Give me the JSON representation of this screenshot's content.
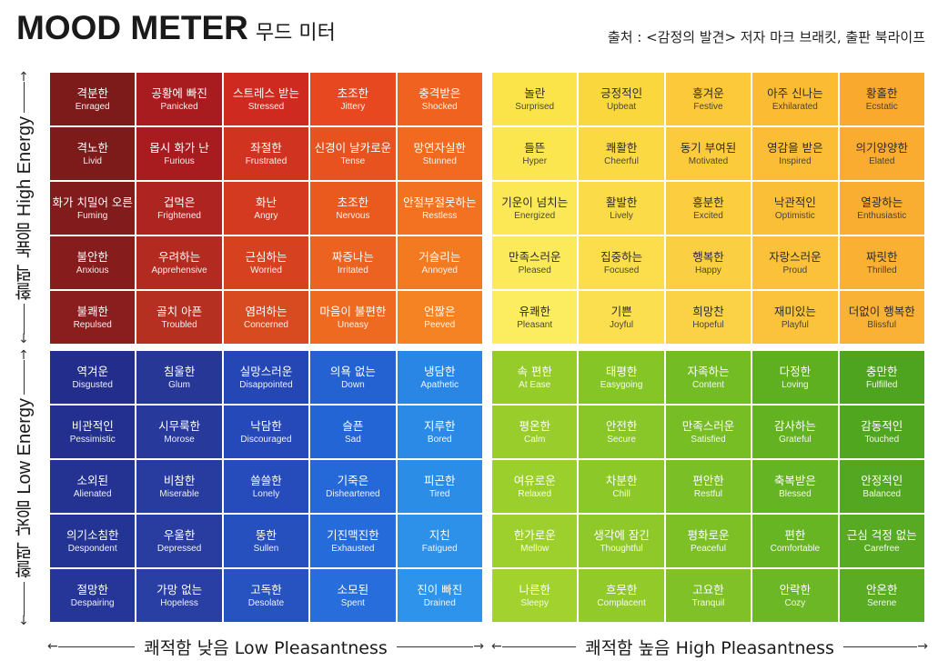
{
  "header": {
    "title_en": "MOOD METER",
    "title_ko": "무드 미터",
    "source": "출처 : <감정의 발견> 저자 마크 브래킷, 출판 북라이프"
  },
  "axes": {
    "high_energy": {
      "ko": "활력 높음",
      "en": "High Energy"
    },
    "low_energy": {
      "ko": "활력 낮음",
      "en": "Low Energy"
    },
    "low_pleasantness": "쾌적함 낮음 Low Pleasantness",
    "high_pleasantness": "쾌적함 높음 High Pleasantness"
  },
  "quadrants": {
    "red": [
      {
        "ko": "격분한",
        "en": "Enraged",
        "color": "#7d1a1a"
      },
      {
        "ko": "공황에 빠진",
        "en": "Panicked",
        "color": "#a81c1f"
      },
      {
        "ko": "스트레스 받는",
        "en": "Stressed",
        "color": "#cf2a1f"
      },
      {
        "ko": "초조한",
        "en": "Jittery",
        "color": "#e8481f"
      },
      {
        "ko": "충격받은",
        "en": "Shocked",
        "color": "#f0621f"
      },
      {
        "ko": "격노한",
        "en": "Livid",
        "color": "#7d1a1a"
      },
      {
        "ko": "몹시 화가 난",
        "en": "Furious",
        "color": "#a81c1f"
      },
      {
        "ko": "좌절한",
        "en": "Frustrated",
        "color": "#d0331f"
      },
      {
        "ko": "신경이 날카로운",
        "en": "Tense",
        "color": "#e8521f"
      },
      {
        "ko": "망연자실한",
        "en": "Stunned",
        "color": "#f26a20"
      },
      {
        "ko": "화가 치밀어 오른",
        "en": "Fuming",
        "color": "#821b1b"
      },
      {
        "ko": "겁먹은",
        "en": "Frightened",
        "color": "#ae2420"
      },
      {
        "ko": "화난",
        "en": "Angry",
        "color": "#d33a1f"
      },
      {
        "ko": "초조한",
        "en": "Nervous",
        "color": "#ea5a1f"
      },
      {
        "ko": "안절부절못하는",
        "en": "Restless",
        "color": "#f37221"
      },
      {
        "ko": "불안한",
        "en": "Anxious",
        "color": "#861c1c"
      },
      {
        "ko": "우려하는",
        "en": "Apprehensive",
        "color": "#b22a20"
      },
      {
        "ko": "근심하는",
        "en": "Worried",
        "color": "#d64120"
      },
      {
        "ko": "짜증나는",
        "en": "Irritated",
        "color": "#ec6220"
      },
      {
        "ko": "거슬리는",
        "en": "Annoyed",
        "color": "#f47a22"
      },
      {
        "ko": "불쾌한",
        "en": "Repulsed",
        "color": "#8a1d1d"
      },
      {
        "ko": "골치 아픈",
        "en": "Troubled",
        "color": "#b53020"
      },
      {
        "ko": "염려하는",
        "en": "Concerned",
        "color": "#d84a20"
      },
      {
        "ko": "마음이 불편한",
        "en": "Uneasy",
        "color": "#ee6a21"
      },
      {
        "ko": "언짢은",
        "en": "Peeved",
        "color": "#f58223"
      }
    ],
    "yellow": [
      {
        "ko": "놀란",
        "en": "Surprised",
        "color": "#fbe44a"
      },
      {
        "ko": "긍정적인",
        "en": "Upbeat",
        "color": "#fbd73e"
      },
      {
        "ko": "흥겨운",
        "en": "Festive",
        "color": "#fcc93a"
      },
      {
        "ko": "아주 신나는",
        "en": "Exhilarated",
        "color": "#fbbb33"
      },
      {
        "ko": "황홀한",
        "en": "Ecstatic",
        "color": "#f9a92e"
      },
      {
        "ko": "들뜬",
        "en": "Hyper",
        "color": "#fbe64f"
      },
      {
        "ko": "쾌활한",
        "en": "Cheerful",
        "color": "#fbd943"
      },
      {
        "ko": "동기 부여된",
        "en": "Motivated",
        "color": "#fbcb3c"
      },
      {
        "ko": "영감을 받은",
        "en": "Inspired",
        "color": "#fbbd35"
      },
      {
        "ko": "의기양양한",
        "en": "Elated",
        "color": "#f9ac2f"
      },
      {
        "ko": "기운이 넘치는",
        "en": "Energized",
        "color": "#fce855"
      },
      {
        "ko": "활발한",
        "en": "Lively",
        "color": "#fbdb47"
      },
      {
        "ko": "흥분한",
        "en": "Excited",
        "color": "#fbcd3f"
      },
      {
        "ko": "낙관적인",
        "en": "Optimistic",
        "color": "#fbbf37"
      },
      {
        "ko": "열광하는",
        "en": "Enthusiastic",
        "color": "#f9ae31"
      },
      {
        "ko": "만족스러운",
        "en": "Pleased",
        "color": "#fcea5b"
      },
      {
        "ko": "집중하는",
        "en": "Focused",
        "color": "#fcdd4b"
      },
      {
        "ko": "행복한",
        "en": "Happy",
        "color": "#fbcf42"
      },
      {
        "ko": "자랑스러운",
        "en": "Proud",
        "color": "#fbc13a"
      },
      {
        "ko": "짜릿한",
        "en": "Thrilled",
        "color": "#f9b033"
      },
      {
        "ko": "유쾌한",
        "en": "Pleasant",
        "color": "#fcec60"
      },
      {
        "ko": "기쁜",
        "en": "Joyful",
        "color": "#fcdf4f"
      },
      {
        "ko": "희망찬",
        "en": "Hopeful",
        "color": "#fbd145"
      },
      {
        "ko": "재미있는",
        "en": "Playful",
        "color": "#fbc33c"
      },
      {
        "ko": "더없이 행복한",
        "en": "Blissful",
        "color": "#f9b235"
      }
    ],
    "blue": [
      {
        "ko": "역겨운",
        "en": "Disgusted",
        "color": "#232e8c"
      },
      {
        "ko": "침울한",
        "en": "Glum",
        "color": "#263796"
      },
      {
        "ko": "실망스러운",
        "en": "Disappointed",
        "color": "#2546b5"
      },
      {
        "ko": "의욕 없는",
        "en": "Down",
        "color": "#2462d2"
      },
      {
        "ko": "냉담한",
        "en": "Apathetic",
        "color": "#2a86e4"
      },
      {
        "ko": "비관적인",
        "en": "Pessimistic",
        "color": "#23308f"
      },
      {
        "ko": "시무룩한",
        "en": "Morose",
        "color": "#27399a"
      },
      {
        "ko": "낙담한",
        "en": "Discouraged",
        "color": "#2549b8"
      },
      {
        "ko": "슬픈",
        "en": "Sad",
        "color": "#2465d5"
      },
      {
        "ko": "지루한",
        "en": "Bored",
        "color": "#2b8ae6"
      },
      {
        "ko": "소외된",
        "en": "Alienated",
        "color": "#243292"
      },
      {
        "ko": "비참한",
        "en": "Miserable",
        "color": "#283b9e"
      },
      {
        "ko": "쓸쓸한",
        "en": "Lonely",
        "color": "#264cbb"
      },
      {
        "ko": "기죽은",
        "en": "Disheartened",
        "color": "#2568d7"
      },
      {
        "ko": "피곤한",
        "en": "Tired",
        "color": "#2c8de7"
      },
      {
        "ko": "의기소침한",
        "en": "Despondent",
        "color": "#243495"
      },
      {
        "ko": "우울한",
        "en": "Depressed",
        "color": "#293da1"
      },
      {
        "ko": "뚱한",
        "en": "Sullen",
        "color": "#2650be"
      },
      {
        "ko": "기진맥진한",
        "en": "Exhausted",
        "color": "#266bda"
      },
      {
        "ko": "지친",
        "en": "Fatigued",
        "color": "#2d90e9"
      },
      {
        "ko": "절망한",
        "en": "Despairing",
        "color": "#253698"
      },
      {
        "ko": "가망 없는",
        "en": "Hopeless",
        "color": "#2a3fa4"
      },
      {
        "ko": "고독한",
        "en": "Desolate",
        "color": "#2753c1"
      },
      {
        "ko": "소모된",
        "en": "Spent",
        "color": "#276edc"
      },
      {
        "ko": "진이 빠진",
        "en": "Drained",
        "color": "#2e93ea"
      }
    ],
    "green": [
      {
        "ko": "속 편한",
        "en": "At Ease",
        "color": "#95cc2a"
      },
      {
        "ko": "태평한",
        "en": "Easygoing",
        "color": "#86c526"
      },
      {
        "ko": "자족하는",
        "en": "Content",
        "color": "#74bc23"
      },
      {
        "ko": "다정한",
        "en": "Loving",
        "color": "#5fb021"
      },
      {
        "ko": "충만한",
        "en": "Fulfilled",
        "color": "#4ea41f"
      },
      {
        "ko": "평온한",
        "en": "Calm",
        "color": "#98cd2b"
      },
      {
        "ko": "안전한",
        "en": "Secure",
        "color": "#89c627"
      },
      {
        "ko": "만족스러운",
        "en": "Satisfied",
        "color": "#77bd24"
      },
      {
        "ko": "감사하는",
        "en": "Grateful",
        "color": "#62b222"
      },
      {
        "ko": "감동적인",
        "en": "Touched",
        "color": "#51a620"
      },
      {
        "ko": "여유로운",
        "en": "Relaxed",
        "color": "#9bcf2c"
      },
      {
        "ko": "차분한",
        "en": "Chill",
        "color": "#8cc828"
      },
      {
        "ko": "편안한",
        "en": "Restful",
        "color": "#7abf25"
      },
      {
        "ko": "축복받은",
        "en": "Blessed",
        "color": "#65b423"
      },
      {
        "ko": "안정적인",
        "en": "Balanced",
        "color": "#54a821"
      },
      {
        "ko": "한가로운",
        "en": "Mellow",
        "color": "#9ed02d"
      },
      {
        "ko": "생각에 잠긴",
        "en": "Thoughtful",
        "color": "#8fc929"
      },
      {
        "ko": "평화로운",
        "en": "Peaceful",
        "color": "#7dc026"
      },
      {
        "ko": "편한",
        "en": "Comfortable",
        "color": "#68b524"
      },
      {
        "ko": "근심 걱정 없는",
        "en": "Carefree",
        "color": "#57aa22"
      },
      {
        "ko": "나른한",
        "en": "Sleepy",
        "color": "#a1d22e"
      },
      {
        "ko": "흐뭇한",
        "en": "Complacent",
        "color": "#92ca2a"
      },
      {
        "ko": "고요한",
        "en": "Tranquil",
        "color": "#80c127"
      },
      {
        "ko": "안락한",
        "en": "Cozy",
        "color": "#6bb725"
      },
      {
        "ko": "안온한",
        "en": "Serene",
        "color": "#5aac23"
      }
    ]
  }
}
